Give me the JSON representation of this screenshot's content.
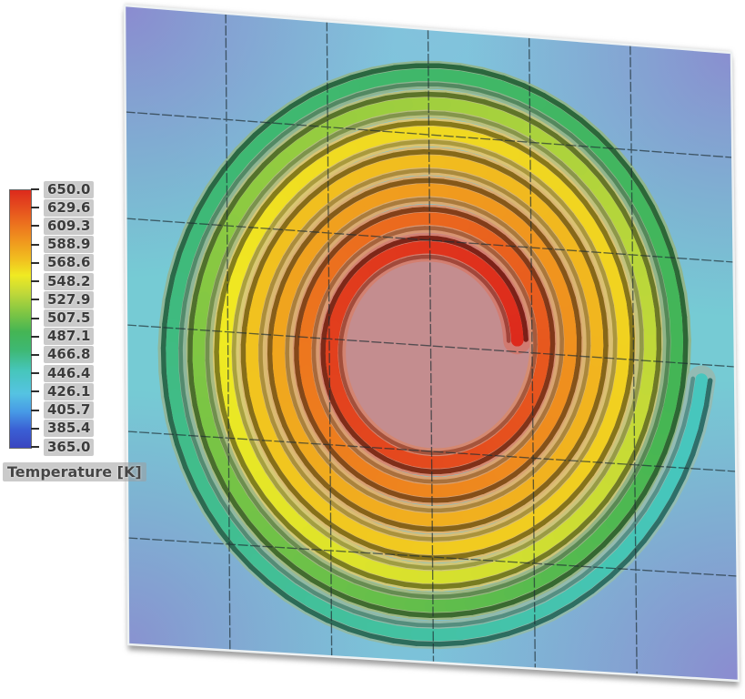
{
  "figure": {
    "kind": "CFD temperature contour of spiral heat exchanger on meshed plate"
  },
  "legend": {
    "title": "Temperature [K]",
    "ticks": [
      "650.0",
      "629.6",
      "609.3",
      "588.9",
      "568.6",
      "548.2",
      "527.9",
      "507.5",
      "487.1",
      "466.8",
      "446.4",
      "426.1",
      "405.7",
      "385.4",
      "365.0"
    ]
  },
  "chart_data": {
    "type": "heatmap",
    "title": "Temperature [K]",
    "variable": "Temperature",
    "unit": "K",
    "range": {
      "min": 365.0,
      "max": 650.0
    },
    "colorbar_ticks": [
      650.0,
      629.6,
      609.3,
      588.9,
      568.6,
      548.2,
      527.9,
      507.5,
      487.1,
      466.8,
      446.4,
      426.1,
      405.7,
      385.4,
      365.0
    ],
    "legend_position": "left",
    "colormap": [
      {
        "t": 0.0,
        "c": "#3a45c0"
      },
      {
        "t": 0.07,
        "c": "#3a5fd4"
      },
      {
        "t": 0.14,
        "c": "#479ae6"
      },
      {
        "t": 0.21,
        "c": "#55c3e2"
      },
      {
        "t": 0.3,
        "c": "#46c6bb"
      },
      {
        "t": 0.38,
        "c": "#3eb873"
      },
      {
        "t": 0.45,
        "c": "#44b554"
      },
      {
        "t": 0.52,
        "c": "#7cc544"
      },
      {
        "t": 0.6,
        "c": "#c0d839"
      },
      {
        "t": 0.67,
        "c": "#f0ea22"
      },
      {
        "t": 0.73,
        "c": "#f1c01f"
      },
      {
        "t": 0.8,
        "c": "#f0981e"
      },
      {
        "t": 0.87,
        "c": "#ec701e"
      },
      {
        "t": 0.94,
        "c": "#e4491e"
      },
      {
        "t": 1.0,
        "c": "#dd2a1c"
      }
    ],
    "scene": {
      "plate": {
        "corners": [
          [
            137,
            6
          ],
          [
            804,
            58
          ],
          [
            812,
            748
          ],
          [
            141,
            708
          ]
        ],
        "grid_divisions": 6,
        "base_color": "#76cbd4",
        "corner_tint": "#8d84cf",
        "top_wash": "#8fb9e6",
        "bottom_wash": "#86b4e0",
        "edge_highlight": "#eef2f3",
        "grid_color": "#1e2e33",
        "shadow_color": "#8f8f8f"
      },
      "spiral": {
        "center": [
          474,
          382
        ],
        "y_scale": 1.08,
        "start_angle_rad": -0.08,
        "turns": 6.97,
        "r_inner": 95,
        "r_outer": 299,
        "band_width": 13.5,
        "temp_profile_K": [
          [
            0,
            650
          ],
          [
            0.12,
            630
          ],
          [
            0.25,
            602
          ],
          [
            0.38,
            583
          ],
          [
            0.5,
            572
          ],
          [
            0.62,
            562
          ],
          [
            0.72,
            535
          ],
          [
            0.82,
            505
          ],
          [
            0.9,
            478
          ],
          [
            1,
            448
          ]
        ],
        "core_color": "#c48d8f",
        "core_rx": 122,
        "core_ry": 131,
        "muted_blend": "#c9b4ad",
        "muted_mix": 0.58,
        "edge_shade": 0.52
      }
    }
  }
}
